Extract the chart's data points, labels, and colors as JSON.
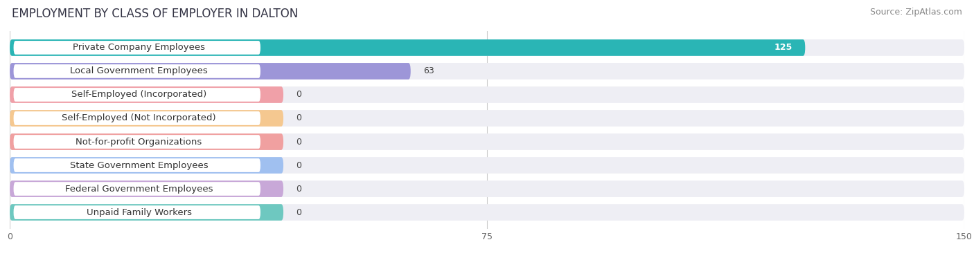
{
  "title": "EMPLOYMENT BY CLASS OF EMPLOYER IN DALTON",
  "source": "Source: ZipAtlas.com",
  "categories": [
    "Private Company Employees",
    "Local Government Employees",
    "Self-Employed (Incorporated)",
    "Self-Employed (Not Incorporated)",
    "Not-for-profit Organizations",
    "State Government Employees",
    "Federal Government Employees",
    "Unpaid Family Workers"
  ],
  "values": [
    125,
    63,
    0,
    0,
    0,
    0,
    0,
    0
  ],
  "bar_colors": [
    "#2ab5b5",
    "#9d96d8",
    "#f0a0a8",
    "#f5c890",
    "#f0a0a0",
    "#a0c0f0",
    "#c8a8d8",
    "#6ec8c0"
  ],
  "label_bg_colors": [
    "#ffffff",
    "#ffffff",
    "#ffffff",
    "#ffffff",
    "#ffffff",
    "#ffffff",
    "#ffffff",
    "#ffffff"
  ],
  "xlim": [
    0,
    150
  ],
  "xticks": [
    0,
    75,
    150
  ],
  "background_color": "#ffffff",
  "bar_bg_color": "#eeeef4",
  "title_fontsize": 12,
  "source_fontsize": 9,
  "label_fontsize": 9.5,
  "value_fontsize": 9
}
